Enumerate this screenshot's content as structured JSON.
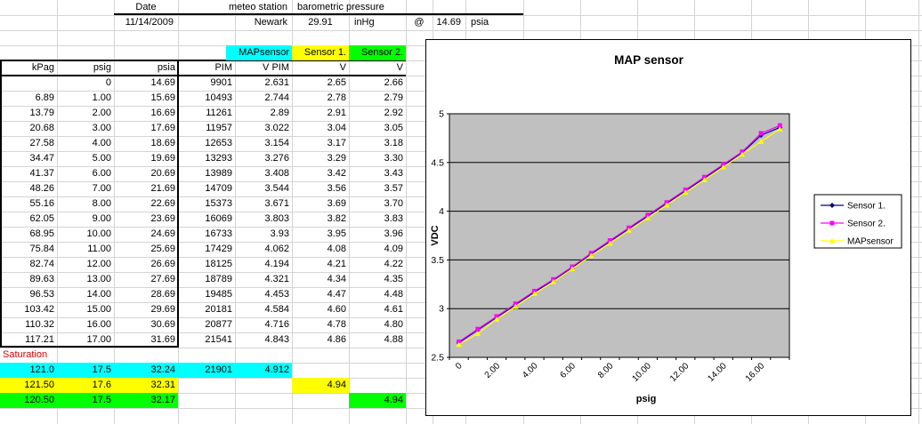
{
  "topbar": {
    "date_label": "Date",
    "date_value": "11/14/2009",
    "meteo_label": "meteo station",
    "baro_label": "barometric pressure",
    "station": "Newark",
    "baro_value": "29.91",
    "baro_unit": "inHg",
    "at_symbol": "@",
    "psia_value": "14.69",
    "psia_unit": "psia"
  },
  "sheet": {
    "group_headers": [
      {
        "label": "MAPsensor",
        "color": "#00FFFF"
      },
      {
        "label": "Sensor 1.",
        "color": "#FFFF00"
      },
      {
        "label": "Sensor 2.",
        "color": "#00FF00"
      }
    ],
    "columns": [
      "kPag",
      "psig",
      "psia",
      "PIM",
      "V PIM",
      "V",
      "V"
    ],
    "rows": [
      [
        "",
        "0",
        "14.69",
        "9901",
        "2.631",
        "2.65",
        "2.66"
      ],
      [
        "6.89",
        "1.00",
        "15.69",
        "10493",
        "2.744",
        "2.78",
        "2.79"
      ],
      [
        "13.79",
        "2.00",
        "16.69",
        "11261",
        "2.89",
        "2.91",
        "2.92"
      ],
      [
        "20.68",
        "3.00",
        "17.69",
        "11957",
        "3.022",
        "3.04",
        "3.05"
      ],
      [
        "27.58",
        "4.00",
        "18.69",
        "12653",
        "3.154",
        "3.17",
        "3.18"
      ],
      [
        "34.47",
        "5.00",
        "19.69",
        "13293",
        "3.276",
        "3.29",
        "3.30"
      ],
      [
        "41.37",
        "6.00",
        "20.69",
        "13989",
        "3.408",
        "3.42",
        "3.43"
      ],
      [
        "48.26",
        "7.00",
        "21.69",
        "14709",
        "3.544",
        "3.56",
        "3.57"
      ],
      [
        "55.16",
        "8.00",
        "22.69",
        "15373",
        "3.671",
        "3.69",
        "3.70"
      ],
      [
        "62.05",
        "9.00",
        "23.69",
        "16069",
        "3.803",
        "3.82",
        "3.83"
      ],
      [
        "68.95",
        "10.00",
        "24.69",
        "16733",
        "3.93",
        "3.95",
        "3.96"
      ],
      [
        "75.84",
        "11.00",
        "25.69",
        "17429",
        "4.062",
        "4.08",
        "4.09"
      ],
      [
        "82.74",
        "12.00",
        "26.69",
        "18125",
        "4.194",
        "4.21",
        "4.22"
      ],
      [
        "89.63",
        "13.00",
        "27.69",
        "18789",
        "4.321",
        "4.34",
        "4.35"
      ],
      [
        "96.53",
        "14.00",
        "28.69",
        "19485",
        "4.453",
        "4.47",
        "4.48"
      ],
      [
        "103.42",
        "15.00",
        "29.69",
        "20181",
        "4.584",
        "4.60",
        "4.61"
      ],
      [
        "110.32",
        "16.00",
        "30.69",
        "20877",
        "4.716",
        "4.78",
        "4.80"
      ],
      [
        "117.21",
        "17.00",
        "31.69",
        "21541",
        "4.843",
        "4.86",
        "4.88"
      ]
    ],
    "saturation_label": "Saturation",
    "saturation_color": "#DD0000",
    "saturation_rows": [
      {
        "color": "#00FFFF",
        "cells": [
          "121.0",
          "17.5",
          "32.24",
          "21901",
          "4.912",
          "",
          ""
        ]
      },
      {
        "color": "#FFFF00",
        "cells": [
          "121.50",
          "17.6",
          "32.31",
          "",
          "",
          "4.94",
          ""
        ]
      },
      {
        "color": "#00FF00",
        "cells": [
          "120.50",
          "17.5",
          "32.17",
          "",
          "",
          "",
          "4.94"
        ]
      }
    ]
  },
  "chart_data": {
    "type": "line",
    "title": "MAP sensor",
    "xlabel": "psig",
    "ylabel": "VDC",
    "ylim": [
      2.5,
      5
    ],
    "ytick_step": 0.5,
    "grid": "horizontal",
    "plot_bg": "#C0C0C0",
    "legend_position": "right",
    "categories": [
      "0",
      "1.00",
      "2.00",
      "3.00",
      "4.00",
      "5.00",
      "6.00",
      "7.00",
      "8.00",
      "9.00",
      "10.00",
      "11.00",
      "12.00",
      "13.00",
      "14.00",
      "15.00",
      "16.00",
      "17.00"
    ],
    "xtick_labels": [
      "0",
      "2.00",
      "4.00",
      "6.00",
      "8.00",
      "10.00",
      "12.00",
      "14.00",
      "16.00"
    ],
    "series": [
      {
        "name": "Sensor 1.",
        "color": "#000080",
        "marker": "diamond",
        "values": [
          2.65,
          2.78,
          2.91,
          3.04,
          3.17,
          3.29,
          3.42,
          3.56,
          3.69,
          3.82,
          3.95,
          4.08,
          4.21,
          4.34,
          4.47,
          4.6,
          4.78,
          4.86
        ]
      },
      {
        "name": "Sensor 2.",
        "color": "#FF00FF",
        "marker": "square",
        "values": [
          2.66,
          2.79,
          2.92,
          3.05,
          3.18,
          3.3,
          3.43,
          3.57,
          3.7,
          3.83,
          3.96,
          4.09,
          4.22,
          4.35,
          4.48,
          4.61,
          4.8,
          4.88
        ]
      },
      {
        "name": "MAPsensor",
        "color": "#FFFF00",
        "marker": "triangle",
        "values": [
          2.631,
          2.744,
          2.89,
          3.022,
          3.154,
          3.276,
          3.408,
          3.544,
          3.671,
          3.803,
          3.93,
          4.062,
          4.194,
          4.321,
          4.453,
          4.584,
          4.716,
          4.843
        ]
      }
    ]
  }
}
